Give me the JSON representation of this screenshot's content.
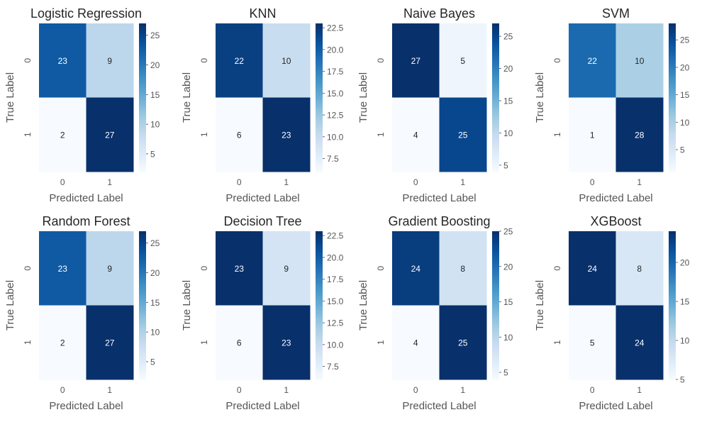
{
  "chart_data": [
    {
      "type": "heatmap",
      "title": "Logistic Regression",
      "xlabel": "Predicted Label",
      "ylabel": "True Label",
      "x_ticks": [
        "0",
        "1"
      ],
      "y_ticks": [
        "0",
        "1"
      ],
      "matrix": [
        [
          23,
          9
        ],
        [
          2,
          27
        ]
      ],
      "colorbar": {
        "min": 2,
        "max": 27,
        "ticks": [
          "5",
          "10",
          "15",
          "20",
          "25"
        ]
      }
    },
    {
      "type": "heatmap",
      "title": "KNN",
      "xlabel": "Predicted Label",
      "ylabel": "True Label",
      "x_ticks": [
        "0",
        "1"
      ],
      "y_ticks": [
        "0",
        "1"
      ],
      "matrix": [
        [
          22,
          10
        ],
        [
          6,
          23
        ]
      ],
      "colorbar": {
        "min": 6,
        "max": 23,
        "ticks": [
          "7.5",
          "10.0",
          "12.5",
          "15.0",
          "17.5",
          "20.0",
          "22.5"
        ]
      }
    },
    {
      "type": "heatmap",
      "title": "Naive Bayes",
      "xlabel": "Predicted Label",
      "ylabel": "True Label",
      "x_ticks": [
        "0",
        "1"
      ],
      "y_ticks": [
        "0",
        "1"
      ],
      "matrix": [
        [
          27,
          5
        ],
        [
          4,
          25
        ]
      ],
      "colorbar": {
        "min": 4,
        "max": 27,
        "ticks": [
          "5",
          "10",
          "15",
          "20",
          "25"
        ]
      }
    },
    {
      "type": "heatmap",
      "title": "SVM",
      "xlabel": "Predicted Label",
      "ylabel": "True Label",
      "x_ticks": [
        "0",
        "1"
      ],
      "y_ticks": [
        "0",
        "1"
      ],
      "matrix": [
        [
          22,
          10
        ],
        [
          1,
          28
        ]
      ],
      "colorbar": {
        "min": 1,
        "max": 28,
        "ticks": [
          "5",
          "10",
          "15",
          "20",
          "25"
        ]
      }
    },
    {
      "type": "heatmap",
      "title": "Random Forest",
      "xlabel": "Predicted Label",
      "ylabel": "True Label",
      "x_ticks": [
        "0",
        "1"
      ],
      "y_ticks": [
        "0",
        "1"
      ],
      "matrix": [
        [
          23,
          9
        ],
        [
          2,
          27
        ]
      ],
      "colorbar": {
        "min": 2,
        "max": 27,
        "ticks": [
          "5",
          "10",
          "15",
          "20",
          "25"
        ]
      }
    },
    {
      "type": "heatmap",
      "title": "Decision Tree",
      "xlabel": "Predicted Label",
      "ylabel": "True Label",
      "x_ticks": [
        "0",
        "1"
      ],
      "y_ticks": [
        "0",
        "1"
      ],
      "matrix": [
        [
          23,
          9
        ],
        [
          6,
          23
        ]
      ],
      "colorbar": {
        "min": 6,
        "max": 23,
        "ticks": [
          "7.5",
          "10.0",
          "12.5",
          "15.0",
          "17.5",
          "20.0",
          "22.5"
        ]
      }
    },
    {
      "type": "heatmap",
      "title": "Gradient Boosting",
      "xlabel": "Predicted Label",
      "ylabel": "True Label",
      "x_ticks": [
        "0",
        "1"
      ],
      "y_ticks": [
        "0",
        "1"
      ],
      "matrix": [
        [
          24,
          8
        ],
        [
          4,
          25
        ]
      ],
      "colorbar": {
        "min": 4,
        "max": 25,
        "ticks": [
          "5",
          "10",
          "15",
          "20",
          "25"
        ]
      }
    },
    {
      "type": "heatmap",
      "title": "XGBoost",
      "xlabel": "Predicted Label",
      "ylabel": "True Label",
      "x_ticks": [
        "0",
        "1"
      ],
      "y_ticks": [
        "0",
        "1"
      ],
      "matrix": [
        [
          24,
          8
        ],
        [
          5,
          24
        ]
      ],
      "colorbar": {
        "min": 5,
        "max": 24,
        "ticks": [
          "5",
          "10",
          "15",
          "20"
        ]
      }
    }
  ],
  "colormap": {
    "name": "Blues",
    "stops": [
      "#f7fbff",
      "#deebf7",
      "#c6dbef",
      "#9ecae1",
      "#6baed6",
      "#4292c6",
      "#2171b5",
      "#08519c",
      "#08306b"
    ]
  },
  "colors": {
    "text_dark": "#262626",
    "text_light": "#ffffff",
    "tick_text": "#555555"
  }
}
